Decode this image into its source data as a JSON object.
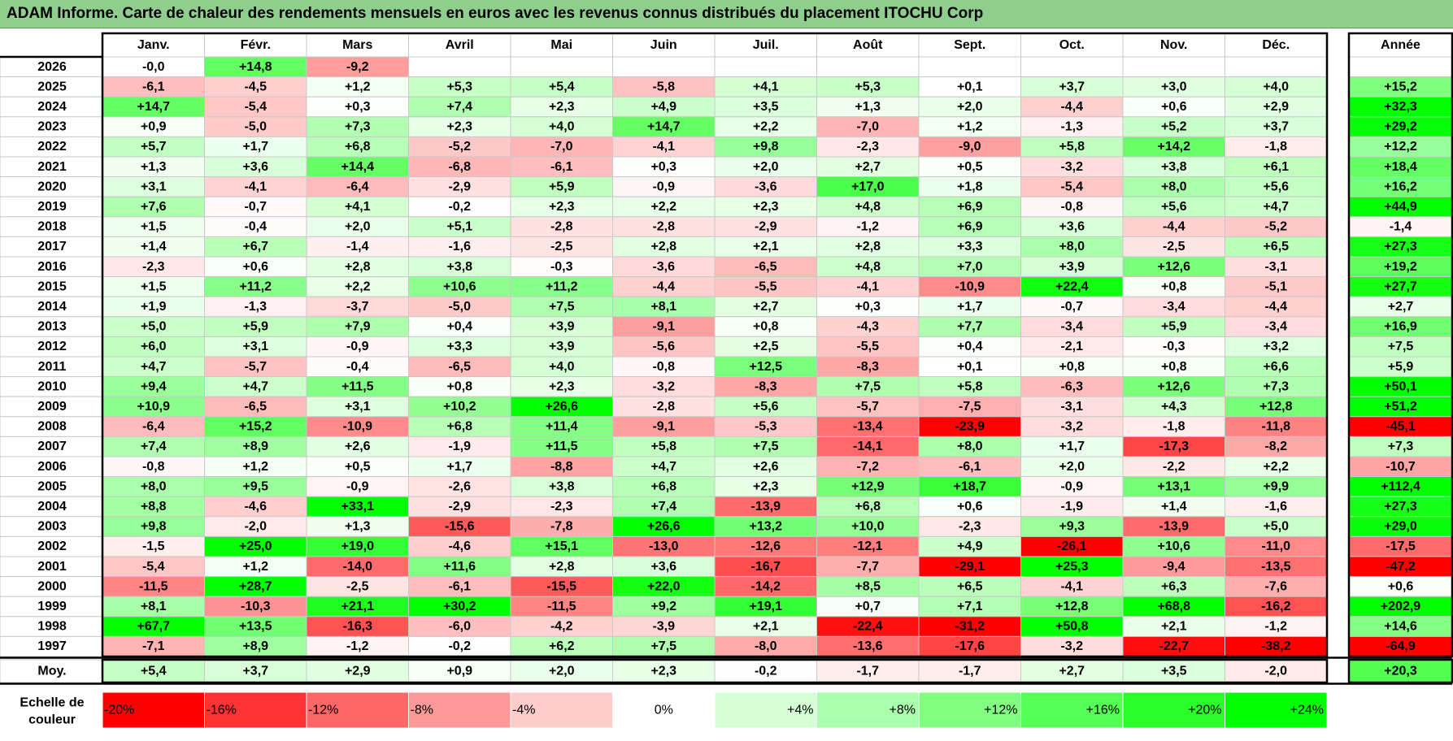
{
  "title": "ADAM Informe. Carte de chaleur des rendements mensuels en euros avec les revenus connus distribués du placement ITOCHU Corp",
  "chart_data": {
    "type": "heatmap",
    "title": "ADAM Informe. Carte de chaleur des rendements mensuels en euros avec les revenus connus distribués du placement ITOCHU Corp",
    "months": [
      "Janv.",
      "Févr.",
      "Mars",
      "Avril",
      "Mai",
      "Juin",
      "Juil.",
      "Août",
      "Sept.",
      "Oct.",
      "Nov.",
      "Déc."
    ],
    "year_header": "Année",
    "avg_label": "Moy.",
    "rows": [
      {
        "year": "2026",
        "months": [
          "-0,0",
          "+14,8",
          "-9,2",
          "",
          "",
          "",
          "",
          "",
          "",
          "",
          "",
          ""
        ],
        "annual": ""
      },
      {
        "year": "2025",
        "months": [
          "-6,1",
          "-4,5",
          "+1,2",
          "+5,3",
          "+5,4",
          "-5,8",
          "+4,1",
          "+5,3",
          "+0,1",
          "+3,7",
          "+3,0",
          "+4,0"
        ],
        "annual": "+15,2"
      },
      {
        "year": "2024",
        "months": [
          "+14,7",
          "-5,4",
          "+0,3",
          "+7,4",
          "+2,3",
          "+4,9",
          "+3,5",
          "+1,3",
          "+2,0",
          "-4,4",
          "+0,6",
          "+2,9"
        ],
        "annual": "+32,3"
      },
      {
        "year": "2023",
        "months": [
          "+0,9",
          "-5,0",
          "+7,3",
          "+2,3",
          "+4,0",
          "+14,7",
          "+2,2",
          "-7,0",
          "+1,2",
          "-1,3",
          "+5,2",
          "+3,7"
        ],
        "annual": "+29,2"
      },
      {
        "year": "2022",
        "months": [
          "+5,7",
          "+1,7",
          "+6,8",
          "-5,2",
          "-7,0",
          "-4,1",
          "+9,8",
          "-2,3",
          "-9,0",
          "+5,8",
          "+14,2",
          "-1,8"
        ],
        "annual": "+12,2"
      },
      {
        "year": "2021",
        "months": [
          "+1,3",
          "+3,6",
          "+14,4",
          "-6,8",
          "-6,1",
          "+0,3",
          "+2,0",
          "+2,7",
          "+0,5",
          "-3,2",
          "+3,8",
          "+6,1"
        ],
        "annual": "+18,4"
      },
      {
        "year": "2020",
        "months": [
          "+3,1",
          "-4,1",
          "-6,4",
          "-2,9",
          "+5,9",
          "-0,9",
          "-3,6",
          "+17,0",
          "+1,8",
          "-5,4",
          "+8,0",
          "+5,6"
        ],
        "annual": "+16,2"
      },
      {
        "year": "2019",
        "months": [
          "+7,6",
          "-0,7",
          "+4,1",
          "-0,2",
          "+2,3",
          "+2,2",
          "+2,3",
          "+4,8",
          "+6,9",
          "-0,8",
          "+5,6",
          "+4,7"
        ],
        "annual": "+44,9"
      },
      {
        "year": "2018",
        "months": [
          "+1,5",
          "-0,4",
          "+2,0",
          "+5,1",
          "-2,8",
          "-2,8",
          "-2,9",
          "-1,2",
          "+6,9",
          "+3,6",
          "-4,4",
          "-5,2"
        ],
        "annual": "-1,4"
      },
      {
        "year": "2017",
        "months": [
          "+1,4",
          "+6,7",
          "-1,4",
          "-1,6",
          "-2,5",
          "+2,8",
          "+2,1",
          "+2,8",
          "+3,3",
          "+8,0",
          "-2,5",
          "+6,5"
        ],
        "annual": "+27,3"
      },
      {
        "year": "2016",
        "months": [
          "-2,3",
          "+0,6",
          "+2,8",
          "+3,8",
          "-0,3",
          "-3,6",
          "-6,5",
          "+4,8",
          "+7,0",
          "+3,9",
          "+12,6",
          "-3,1"
        ],
        "annual": "+19,2"
      },
      {
        "year": "2015",
        "months": [
          "+1,5",
          "+11,2",
          "+2,2",
          "+10,6",
          "+11,2",
          "-4,4",
          "-5,5",
          "-4,1",
          "-10,9",
          "+22,4",
          "+0,8",
          "-5,1"
        ],
        "annual": "+27,7"
      },
      {
        "year": "2014",
        "months": [
          "+1,9",
          "-1,3",
          "-3,7",
          "-5,0",
          "+7,5",
          "+8,1",
          "+2,7",
          "+0,3",
          "+1,7",
          "-0,7",
          "-3,4",
          "-4,4"
        ],
        "annual": "+2,7"
      },
      {
        "year": "2013",
        "months": [
          "+5,0",
          "+5,9",
          "+7,9",
          "+0,4",
          "+3,9",
          "-9,1",
          "+0,8",
          "-4,3",
          "+7,7",
          "-3,4",
          "+5,9",
          "-3,4"
        ],
        "annual": "+16,9"
      },
      {
        "year": "2012",
        "months": [
          "+6,0",
          "+3,1",
          "-0,9",
          "+3,3",
          "+3,9",
          "-5,6",
          "+2,5",
          "-5,5",
          "+0,4",
          "-2,1",
          "-0,3",
          "+3,2"
        ],
        "annual": "+7,5"
      },
      {
        "year": "2011",
        "months": [
          "+4,7",
          "-5,7",
          "-0,4",
          "-6,5",
          "+4,0",
          "-0,8",
          "+12,5",
          "-8,3",
          "+0,1",
          "+0,8",
          "+0,8",
          "+6,6"
        ],
        "annual": "+5,9"
      },
      {
        "year": "2010",
        "months": [
          "+9,4",
          "+4,7",
          "+11,5",
          "+0,8",
          "+2,3",
          "-3,2",
          "-8,3",
          "+7,5",
          "+5,8",
          "-6,3",
          "+12,6",
          "+7,3"
        ],
        "annual": "+50,1"
      },
      {
        "year": "2009",
        "months": [
          "+10,9",
          "-6,5",
          "+3,1",
          "+10,2",
          "+26,6",
          "-2,8",
          "+5,6",
          "-5,7",
          "-7,5",
          "-3,1",
          "+4,3",
          "+12,8"
        ],
        "annual": "+51,2"
      },
      {
        "year": "2008",
        "months": [
          "-6,4",
          "+15,2",
          "-10,9",
          "+6,8",
          "+11,4",
          "-9,1",
          "-5,3",
          "-13,4",
          "-23,9",
          "-3,2",
          "-1,8",
          "-11,8"
        ],
        "annual": "-45,1"
      },
      {
        "year": "2007",
        "months": [
          "+7,4",
          "+8,9",
          "+2,6",
          "-1,9",
          "+11,5",
          "+5,8",
          "+7,5",
          "-14,1",
          "+8,0",
          "+1,7",
          "-17,3",
          "-8,2"
        ],
        "annual": "+7,3"
      },
      {
        "year": "2006",
        "months": [
          "-0,8",
          "+1,2",
          "+0,5",
          "+1,7",
          "-8,8",
          "+4,7",
          "+2,6",
          "-7,2",
          "-6,1",
          "+2,0",
          "-2,2",
          "+2,2"
        ],
        "annual": "-10,7"
      },
      {
        "year": "2005",
        "months": [
          "+8,0",
          "+9,5",
          "-0,9",
          "-2,6",
          "+3,8",
          "+6,8",
          "+2,3",
          "+12,9",
          "+18,7",
          "-0,9",
          "+13,1",
          "+9,9"
        ],
        "annual": "+112,4"
      },
      {
        "year": "2004",
        "months": [
          "+8,8",
          "-4,6",
          "+33,1",
          "-2,9",
          "-2,3",
          "+7,4",
          "-13,9",
          "+6,8",
          "+0,6",
          "-1,9",
          "+1,4",
          "-1,6"
        ],
        "annual": "+27,3"
      },
      {
        "year": "2003",
        "months": [
          "+9,8",
          "-2,0",
          "+1,3",
          "-15,6",
          "-7,8",
          "+26,6",
          "+13,2",
          "+10,0",
          "-2,3",
          "+9,3",
          "-13,9",
          "+5,0"
        ],
        "annual": "+29,0"
      },
      {
        "year": "2002",
        "months": [
          "-1,5",
          "+25,0",
          "+19,0",
          "-4,6",
          "+15,1",
          "-13,0",
          "-12,6",
          "-12,1",
          "+4,9",
          "-26,1",
          "+10,6",
          "-11,0"
        ],
        "annual": "-17,5"
      },
      {
        "year": "2001",
        "months": [
          "-5,4",
          "+1,2",
          "-14,0",
          "+11,6",
          "+2,8",
          "+3,6",
          "-16,7",
          "-7,7",
          "-29,1",
          "+25,3",
          "-9,4",
          "-13,5"
        ],
        "annual": "-47,2"
      },
      {
        "year": "2000",
        "months": [
          "-11,5",
          "+28,7",
          "-2,5",
          "-6,1",
          "-15,5",
          "+22,0",
          "-14,2",
          "+8,5",
          "+6,5",
          "-4,1",
          "+6,3",
          "-7,6"
        ],
        "annual": "+0,6"
      },
      {
        "year": "1999",
        "months": [
          "+8,1",
          "-10,3",
          "+21,1",
          "+30,2",
          "-11,5",
          "+9,2",
          "+19,1",
          "+0,7",
          "+7,1",
          "+12,8",
          "+68,8",
          "-16,2"
        ],
        "annual": "+202,9"
      },
      {
        "year": "1998",
        "months": [
          "+67,7",
          "+13,5",
          "-16,3",
          "-6,0",
          "-4,2",
          "-3,9",
          "+2,1",
          "-22,4",
          "-31,2",
          "+50,8",
          "+2,1",
          "-1,2"
        ],
        "annual": "+14,6"
      },
      {
        "year": "1997",
        "months": [
          "-7,1",
          "+8,9",
          "-1,2",
          "-0,2",
          "+6,2",
          "+7,5",
          "-8,0",
          "-13,6",
          "-17,6",
          "-3,2",
          "-22,7",
          "-38,2"
        ],
        "annual": "-64,9"
      }
    ],
    "averages": [
      "+5,4",
      "+3,7",
      "+2,9",
      "+0,9",
      "+2,0",
      "+2,3",
      "-0,2",
      "-1,7",
      "-1,7",
      "+2,7",
      "+3,5",
      "-2,0"
    ],
    "average_annual": "+20,3",
    "scale_label_line1": "Echelle de",
    "scale_label_line2": "couleur",
    "scale": [
      {
        "label": "-20%",
        "value": -20
      },
      {
        "label": "-16%",
        "value": -16
      },
      {
        "label": "-12%",
        "value": -12
      },
      {
        "label": "-8%",
        "value": -8
      },
      {
        "label": "-4%",
        "value": -4
      },
      {
        "label": "0%",
        "value": 0
      },
      {
        "label": "+4%",
        "value": 4
      },
      {
        "label": "+8%",
        "value": 8
      },
      {
        "label": "+12%",
        "value": 12
      },
      {
        "label": "+16%",
        "value": 16
      },
      {
        "label": "+20%",
        "value": 20
      },
      {
        "label": "+24%",
        "value": 24
      }
    ]
  }
}
